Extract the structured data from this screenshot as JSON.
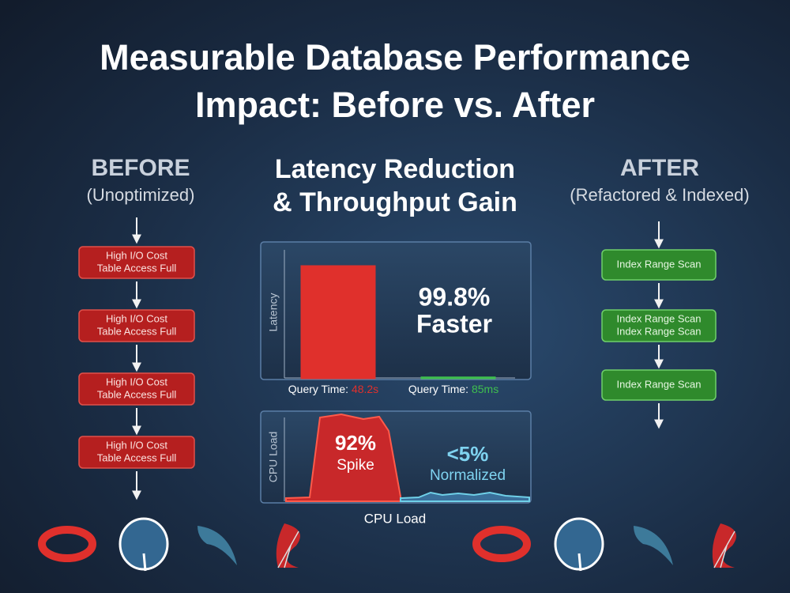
{
  "header": {
    "title_line1": "Measurable Database Performance",
    "title_line2": "Impact: Before vs. After"
  },
  "before": {
    "heading": "BEFORE",
    "subheading": "(Unoptimized)",
    "steps": [
      [
        "High I/O Cost",
        "Table Access Full"
      ],
      [
        "High I/O Cost",
        "Table Access Full"
      ],
      [
        "High I/O Cost",
        "Table Access Full"
      ],
      [
        "High I/O Cost",
        "Table Access Full"
      ]
    ]
  },
  "center": {
    "heading_line1": "Latency Reduction",
    "heading_line2": "& Throughput Gain"
  },
  "latency_chart": {
    "type": "bar",
    "ylabel": "Latency",
    "categories": [
      "Query Time:",
      "Query Time:"
    ],
    "values": [
      48.2,
      0.085
    ],
    "value_labels": [
      "48.2s",
      "85ms"
    ],
    "colors": [
      "#e0302c",
      "#3fbf4f"
    ],
    "annotation_line1": "99.8%",
    "annotation_line2": "Faster"
  },
  "cpu_chart": {
    "ylabel": "CPU Load",
    "spike_value": "92%",
    "spike_label": "Spike",
    "normal_value": "<5%",
    "normal_label": "Normalized",
    "xlabel": "CPU Load"
  },
  "after": {
    "heading": "AFTER",
    "subheading": "(Refactored & Indexed)",
    "steps": [
      [
        "Index Range Scan"
      ],
      [
        "Index Range Scan",
        "Index Range Scan"
      ],
      [
        "Index Range Scan"
      ]
    ]
  }
}
